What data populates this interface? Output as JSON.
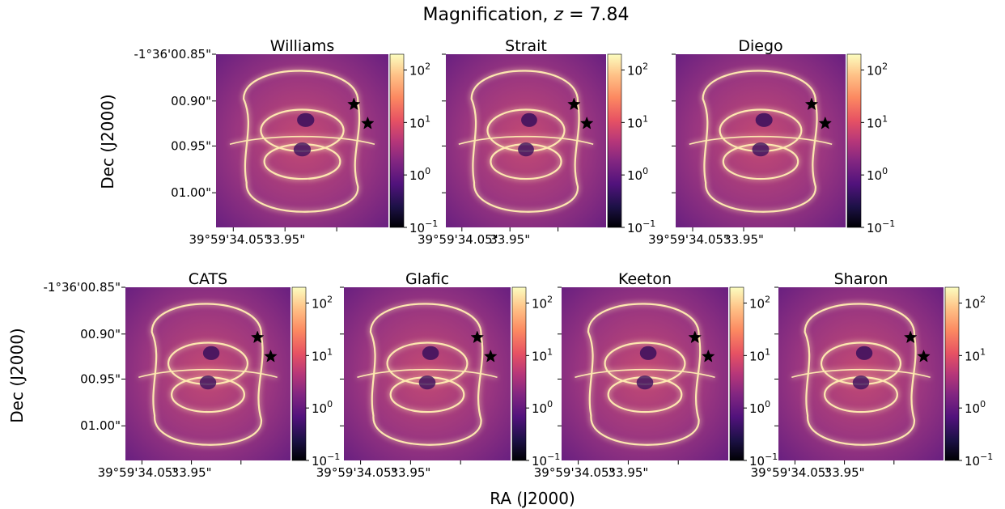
{
  "figure": {
    "title_prefix": "Magnification, ",
    "title_var": "z",
    "title_suffix": " = 7.84",
    "xlabel": "RA (J2000)",
    "ylabel": "Dec (J2000)"
  },
  "chart_data": {
    "type": "heatmap",
    "colormap": "magma",
    "color_scale": "log",
    "colorbar_range": [
      0.1,
      200
    ],
    "colorbar_ticks": [
      {
        "base": "10",
        "exp": "2"
      },
      {
        "base": "10",
        "exp": "1"
      },
      {
        "base": "10",
        "exp": "0"
      },
      {
        "base": "10",
        "exp": "−1"
      }
    ],
    "x_tick_labels": [
      "39°59'34.05\"",
      "33.95\""
    ],
    "y_tick_labels": [
      "-1°36'00.85\"",
      "00.90\"",
      "00.95\"",
      "01.00\""
    ],
    "star_markers": 2,
    "panels": [
      {
        "name": "Williams"
      },
      {
        "name": "Strait"
      },
      {
        "name": "Diego"
      },
      {
        "name": "CATS"
      },
      {
        "name": "Glafic"
      },
      {
        "name": "Keeton"
      },
      {
        "name": "Sharon"
      }
    ]
  }
}
